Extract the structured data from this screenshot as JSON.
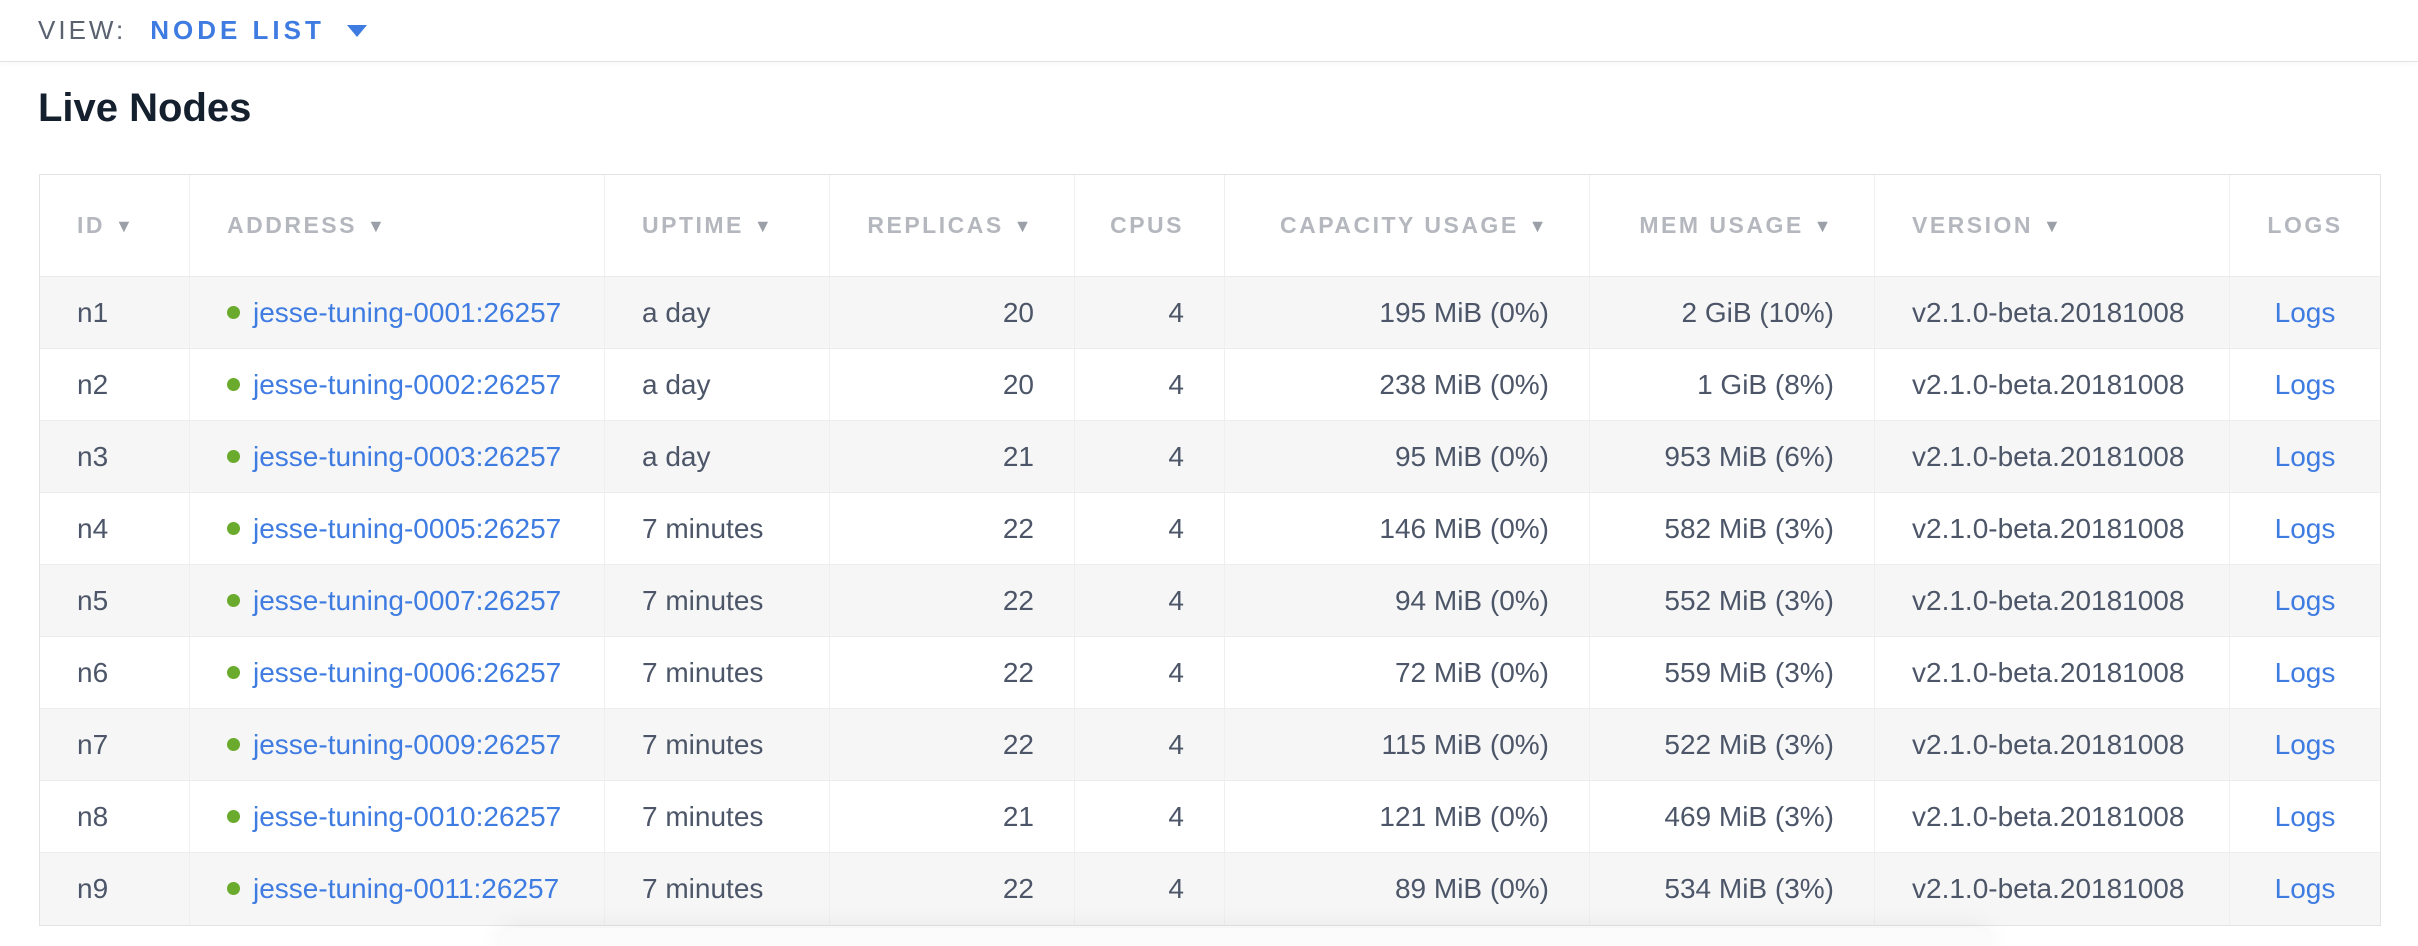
{
  "view_bar": {
    "label": "VIEW:",
    "selected": "NODE LIST"
  },
  "page": {
    "title": "Live Nodes"
  },
  "colors": {
    "accent_blue": "#3f7ce2",
    "live_green": "#6aab2e",
    "header_gray": "#b4b7bd",
    "cell_text": "#4c5668",
    "stripe_bg": "#f6f6f6"
  },
  "table": {
    "columns": [
      {
        "key": "id",
        "label": "ID",
        "sortable": true,
        "align": "left"
      },
      {
        "key": "address",
        "label": "ADDRESS",
        "sortable": true,
        "align": "left"
      },
      {
        "key": "uptime",
        "label": "UPTIME",
        "sortable": true,
        "align": "left"
      },
      {
        "key": "replicas",
        "label": "REPLICAS",
        "sortable": true,
        "align": "right"
      },
      {
        "key": "cpus",
        "label": "CPUS",
        "sortable": false,
        "align": "right"
      },
      {
        "key": "capacity",
        "label": "CAPACITY USAGE",
        "sortable": true,
        "align": "right"
      },
      {
        "key": "mem",
        "label": "MEM USAGE",
        "sortable": true,
        "align": "right"
      },
      {
        "key": "version",
        "label": "VERSION",
        "sortable": true,
        "align": "left"
      },
      {
        "key": "logs",
        "label": "LOGS",
        "sortable": false,
        "align": "center"
      }
    ],
    "sort_caret": "▼",
    "rows": [
      {
        "id": "n1",
        "status": "live",
        "address": "jesse-tuning-0001:26257",
        "uptime": "a day",
        "replicas": "20",
        "cpus": "4",
        "capacity": "195 MiB (0%)",
        "mem": "2 GiB (10%)",
        "version": "v2.1.0-beta.20181008",
        "logs": "Logs"
      },
      {
        "id": "n2",
        "status": "live",
        "address": "jesse-tuning-0002:26257",
        "uptime": "a day",
        "replicas": "20",
        "cpus": "4",
        "capacity": "238 MiB (0%)",
        "mem": "1 GiB (8%)",
        "version": "v2.1.0-beta.20181008",
        "logs": "Logs"
      },
      {
        "id": "n3",
        "status": "live",
        "address": "jesse-tuning-0003:26257",
        "uptime": "a day",
        "replicas": "21",
        "cpus": "4",
        "capacity": "95 MiB (0%)",
        "mem": "953 MiB (6%)",
        "version": "v2.1.0-beta.20181008",
        "logs": "Logs"
      },
      {
        "id": "n4",
        "status": "live",
        "address": "jesse-tuning-0005:26257",
        "uptime": "7 minutes",
        "replicas": "22",
        "cpus": "4",
        "capacity": "146 MiB (0%)",
        "mem": "582 MiB (3%)",
        "version": "v2.1.0-beta.20181008",
        "logs": "Logs"
      },
      {
        "id": "n5",
        "status": "live",
        "address": "jesse-tuning-0007:26257",
        "uptime": "7 minutes",
        "replicas": "22",
        "cpus": "4",
        "capacity": "94 MiB (0%)",
        "mem": "552 MiB (3%)",
        "version": "v2.1.0-beta.20181008",
        "logs": "Logs"
      },
      {
        "id": "n6",
        "status": "live",
        "address": "jesse-tuning-0006:26257",
        "uptime": "7 minutes",
        "replicas": "22",
        "cpus": "4",
        "capacity": "72 MiB (0%)",
        "mem": "559 MiB (3%)",
        "version": "v2.1.0-beta.20181008",
        "logs": "Logs"
      },
      {
        "id": "n7",
        "status": "live",
        "address": "jesse-tuning-0009:26257",
        "uptime": "7 minutes",
        "replicas": "22",
        "cpus": "4",
        "capacity": "115 MiB (0%)",
        "mem": "522 MiB (3%)",
        "version": "v2.1.0-beta.20181008",
        "logs": "Logs"
      },
      {
        "id": "n8",
        "status": "live",
        "address": "jesse-tuning-0010:26257",
        "uptime": "7 minutes",
        "replicas": "21",
        "cpus": "4",
        "capacity": "121 MiB (0%)",
        "mem": "469 MiB (3%)",
        "version": "v2.1.0-beta.20181008",
        "logs": "Logs"
      },
      {
        "id": "n9",
        "status": "live",
        "address": "jesse-tuning-0011:26257",
        "uptime": "7 minutes",
        "replicas": "22",
        "cpus": "4",
        "capacity": "89 MiB (0%)",
        "mem": "534 MiB (3%)",
        "version": "v2.1.0-beta.20181008",
        "logs": "Logs"
      }
    ]
  }
}
